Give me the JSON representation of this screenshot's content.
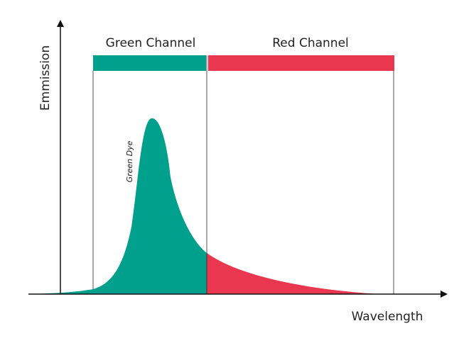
{
  "channels": [
    {
      "label": "Green Channel"
    },
    {
      "label": "Red Channel"
    }
  ],
  "curve_label": "Green Dye",
  "axes": {
    "y_label": "Emmission",
    "x_label": "Wavelength"
  }
}
